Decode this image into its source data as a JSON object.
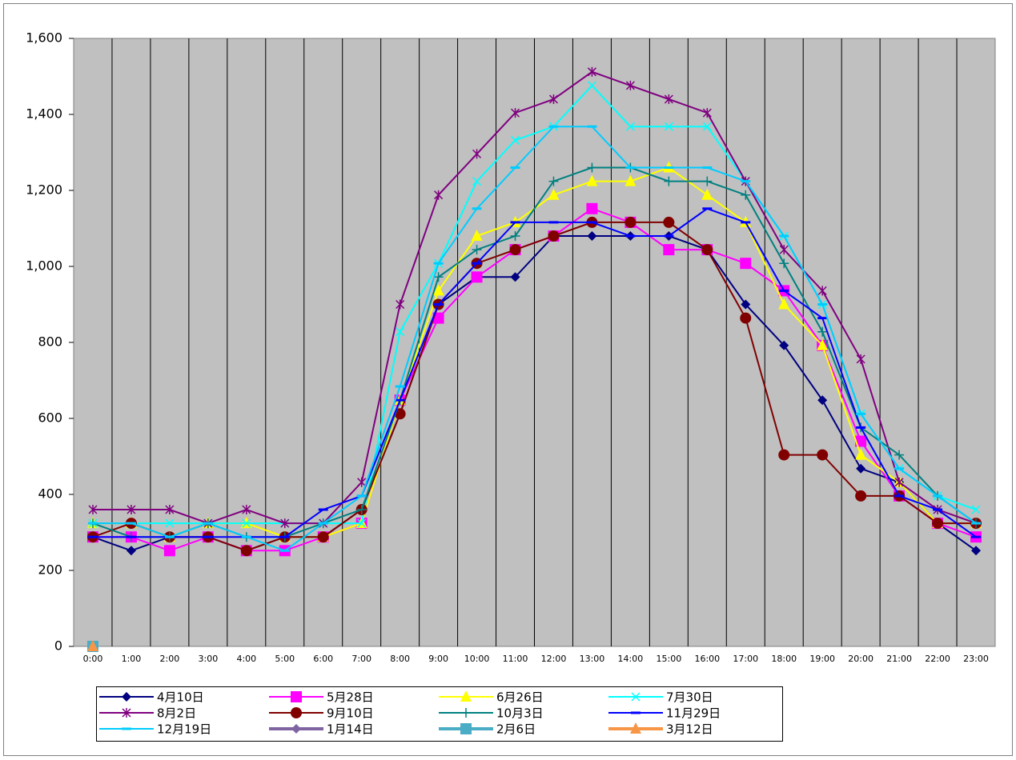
{
  "chart_data": {
    "type": "line",
    "categories": [
      "0:00",
      "1:00",
      "2:00",
      "3:00",
      "4:00",
      "5:00",
      "6:00",
      "7:00",
      "8:00",
      "9:00",
      "10:00",
      "11:00",
      "12:00",
      "13:00",
      "14:00",
      "15:00",
      "16:00",
      "17:00",
      "18:00",
      "19:00",
      "20:00",
      "21:00",
      "22:00",
      "23:00"
    ],
    "ylim": [
      0,
      1600
    ],
    "yticks": [
      0,
      200,
      400,
      600,
      800,
      {
        "value": 1000,
        "label": "1,000"
      },
      {
        "value": 1200,
        "label": "1,200"
      },
      {
        "value": 1400,
        "label": "1,400"
      },
      {
        "value": 1600,
        "label": "1,600"
      }
    ],
    "series": [
      {
        "name": "4月10日",
        "color": "#000080",
        "marker": "diamond",
        "values": [
          288,
          252,
          288,
          288,
          252,
          288,
          288,
          360,
          612,
          900,
          972,
          972,
          1080,
          1080,
          1080,
          1080,
          1044,
          900,
          792,
          648,
          468,
          432,
          324,
          252
        ]
      },
      {
        "name": "5月28日",
        "color": "#ff00ff",
        "marker": "square",
        "values": [
          288,
          288,
          252,
          288,
          252,
          252,
          288,
          324,
          648,
          864,
          972,
          1044,
          1080,
          1152,
          1116,
          1044,
          1044,
          1008,
          936,
          792,
          540,
          396,
          324,
          288
        ]
      },
      {
        "name": "6月26日",
        "color": "#ffff00",
        "marker": "triangle",
        "values": [
          324,
          324,
          288,
          324,
          324,
          288,
          288,
          324,
          648,
          936,
          1080,
          1116,
          1188,
          1224,
          1224,
          1260,
          1188,
          1116,
          900,
          792,
          504,
          432,
          324,
          324
        ]
      },
      {
        "name": "7月30日",
        "color": "#00ffff",
        "marker": "x",
        "values": [
          324,
          324,
          324,
          324,
          324,
          324,
          324,
          324,
          828,
          1008,
          1224,
          1332,
          1368,
          1476,
          1368,
          1368,
          1368,
          1224,
          1080,
          900,
          612,
          468,
          396,
          360
        ]
      },
      {
        "name": "8月2日",
        "color": "#800080",
        "marker": "star",
        "values": [
          360,
          360,
          360,
          324,
          360,
          324,
          324,
          432,
          900,
          1188,
          1296,
          1404,
          1440,
          1512,
          1476,
          1440,
          1404,
          1224,
          1044,
          936,
          756,
          432,
          360,
          324
        ]
      },
      {
        "name": "9月10日",
        "color": "#800000",
        "marker": "circle",
        "values": [
          288,
          324,
          288,
          288,
          252,
          288,
          288,
          360,
          612,
          900,
          1008,
          1044,
          1080,
          1116,
          1116,
          1116,
          1044,
          864,
          504,
          504,
          396,
          396,
          324,
          324
        ]
      },
      {
        "name": "10月3日",
        "color": "#008080",
        "marker": "plus",
        "values": [
          324,
          288,
          288,
          324,
          288,
          288,
          324,
          360,
          648,
          972,
          1044,
          1080,
          1224,
          1260,
          1260,
          1224,
          1224,
          1188,
          1008,
          828,
          576,
          504,
          396,
          324
        ]
      },
      {
        "name": "11月29日",
        "color": "#0000ff",
        "marker": "dash",
        "values": [
          288,
          288,
          288,
          288,
          288,
          288,
          360,
          396,
          648,
          900,
          1008,
          1116,
          1116,
          1116,
          1080,
          1080,
          1152,
          1116,
          936,
          864,
          576,
          396,
          360,
          288
        ]
      },
      {
        "name": "12月19日",
        "color": "#00ccff",
        "marker": "dash",
        "values": [
          324,
          324,
          288,
          324,
          288,
          252,
          324,
          396,
          684,
          1008,
          1152,
          1260,
          1368,
          1368,
          1260,
          1260,
          1260,
          1224,
          1080,
          900,
          612,
          468,
          396,
          324
        ]
      },
      {
        "name": "1月14日",
        "color": "#8064a2",
        "marker": "diamond",
        "width": 4,
        "values": [
          0,
          null,
          null,
          null,
          null,
          null,
          null,
          null,
          null,
          null,
          null,
          null,
          null,
          null,
          null,
          null,
          null,
          null,
          null,
          null,
          null,
          null,
          null,
          null
        ]
      },
      {
        "name": "2月6日",
        "color": "#4bacc6",
        "marker": "square",
        "width": 4,
        "values": [
          0,
          null,
          null,
          null,
          null,
          null,
          null,
          null,
          null,
          null,
          null,
          null,
          null,
          null,
          null,
          null,
          null,
          null,
          null,
          null,
          null,
          null,
          null,
          null
        ]
      },
      {
        "name": "3月12日",
        "color": "#f79646",
        "marker": "triangle",
        "width": 4,
        "values": [
          0,
          null,
          null,
          null,
          null,
          null,
          null,
          null,
          null,
          null,
          null,
          null,
          null,
          null,
          null,
          null,
          null,
          null,
          null,
          null,
          null,
          null,
          null,
          null
        ]
      }
    ]
  }
}
